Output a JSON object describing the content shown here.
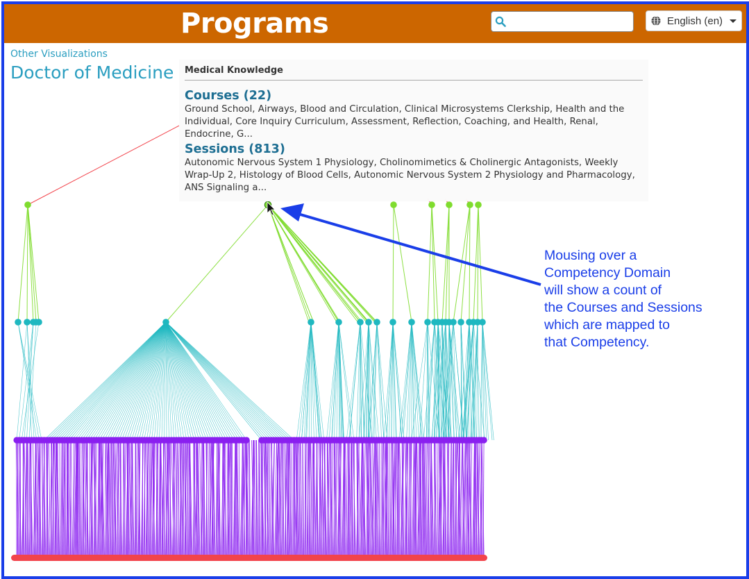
{
  "header": {
    "title": "Programs",
    "search": {
      "value": "",
      "placeholder": ""
    },
    "language": {
      "label": "English (en)"
    }
  },
  "nav": {
    "other_visualizations": "Other Visualizations"
  },
  "program": {
    "title": "Doctor of Medicine"
  },
  "tooltip": {
    "heading": "Medical Knowledge",
    "courses": {
      "label": "Courses (22)",
      "list": "Ground School, Airways, Blood and Circulation, Clinical Microsystems Clerkship, Health and the Individual, Core Inquiry Curriculum, Assessment, Reflection, Coaching, and Health, Renal, Endocrine, G..."
    },
    "sessions": {
      "label": "Sessions (813)",
      "list": "Autonomic Nervous System 1 Physiology, Cholinomimetics & Cholinergic Antagonists, Weekly Wrap-Up 2, Histology of Blood Cells, Autonomic Nervous System 2 Physiology and Pharmacology, ANS Signaling a..."
    }
  },
  "annotation": {
    "lines": [
      "Mousing over a",
      "Competency Domain",
      "will show a count of",
      "the Courses and Sessions",
      "which are mapped to",
      "that Competency."
    ]
  },
  "colors": {
    "header_bg": "#cc6600",
    "frame": "#1a3ee8",
    "link": "#2a9ec0",
    "domain_node": "#7fdc2e",
    "competency_node": "#1fb8c0",
    "course_node": "#8a1ff0",
    "session_node": "#f2444c"
  },
  "icons": {
    "search": "search-icon",
    "language": "globe-icon",
    "cursor": "cursor-arrow-icon"
  }
}
